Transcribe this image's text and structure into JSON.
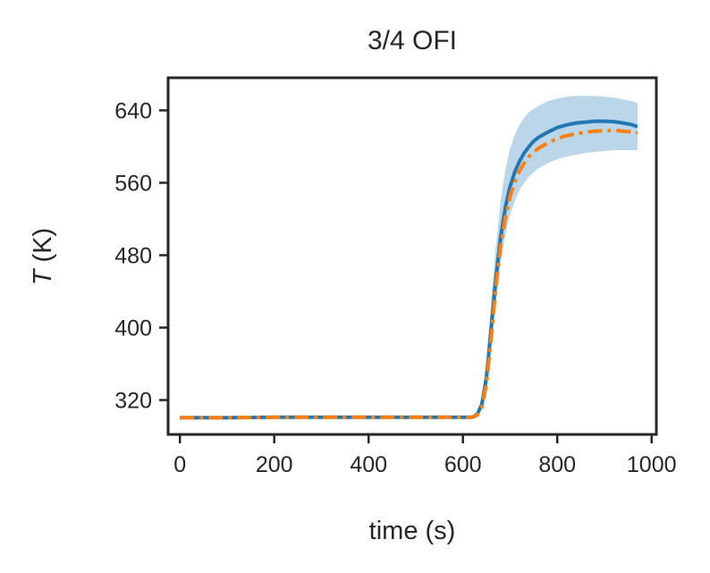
{
  "chart_data": {
    "type": "line",
    "title": "3/4 OFI",
    "xlabel": "time (s)",
    "ylabel_symbol": "T",
    "ylabel_unit": " (K)",
    "xlim": [
      -25,
      1010
    ],
    "ylim": [
      282,
      676
    ],
    "xticks": [
      0,
      200,
      400,
      600,
      800,
      1000
    ],
    "yticks": [
      320,
      400,
      480,
      560,
      640
    ],
    "grid": false,
    "legend": "none",
    "series": [
      {
        "color": "#1f77b4",
        "style": "solid",
        "x": [
          0,
          100,
          200,
          300,
          400,
          500,
          600,
          620,
          630,
          640,
          650,
          660,
          670,
          680,
          690,
          700,
          710,
          720,
          730,
          740,
          750,
          760,
          780,
          800,
          820,
          840,
          860,
          880,
          900,
          920,
          940,
          960,
          970
        ],
        "y": [
          300.5,
          300.5,
          301,
          301,
          301,
          301,
          301,
          301,
          304,
          315,
          345,
          400,
          455,
          500,
          533,
          556,
          572,
          584,
          593,
          600,
          606,
          610,
          616,
          621,
          624,
          626,
          627,
          628,
          628,
          627.5,
          626,
          624,
          622
        ]
      },
      {
        "color": "#ff7f0e",
        "style": "dashdot",
        "x": [
          0,
          100,
          200,
          300,
          400,
          500,
          600,
          620,
          630,
          640,
          650,
          660,
          670,
          680,
          690,
          700,
          710,
          720,
          730,
          740,
          750,
          760,
          780,
          800,
          820,
          840,
          860,
          880,
          900,
          920,
          940,
          960,
          970
        ],
        "y": [
          300.5,
          300.5,
          301,
          301,
          301,
          301,
          301,
          301,
          303,
          312,
          338,
          390,
          445,
          490,
          522,
          545,
          561,
          573,
          582,
          589,
          594,
          598,
          604,
          609,
          612,
          614,
          616,
          617,
          617.5,
          618,
          617,
          616,
          615
        ]
      }
    ],
    "band": {
      "color": "#1f77b4",
      "opacity": 0.3,
      "x": [
        630,
        640,
        650,
        660,
        670,
        680,
        690,
        700,
        710,
        720,
        730,
        740,
        760,
        780,
        800,
        820,
        840,
        860,
        880,
        900,
        920,
        940,
        960,
        970
      ],
      "lower": [
        302,
        310,
        332,
        380,
        430,
        472,
        503,
        525,
        540,
        552,
        560,
        567,
        576,
        582,
        586,
        589,
        591,
        593,
        594,
        595,
        596,
        596,
        596,
        596
      ],
      "upper": [
        306,
        325,
        365,
        430,
        490,
        540,
        575,
        598,
        613,
        624,
        632,
        638,
        645,
        650,
        653,
        655,
        656,
        656,
        656,
        655,
        654,
        652,
        650,
        648
      ]
    }
  }
}
